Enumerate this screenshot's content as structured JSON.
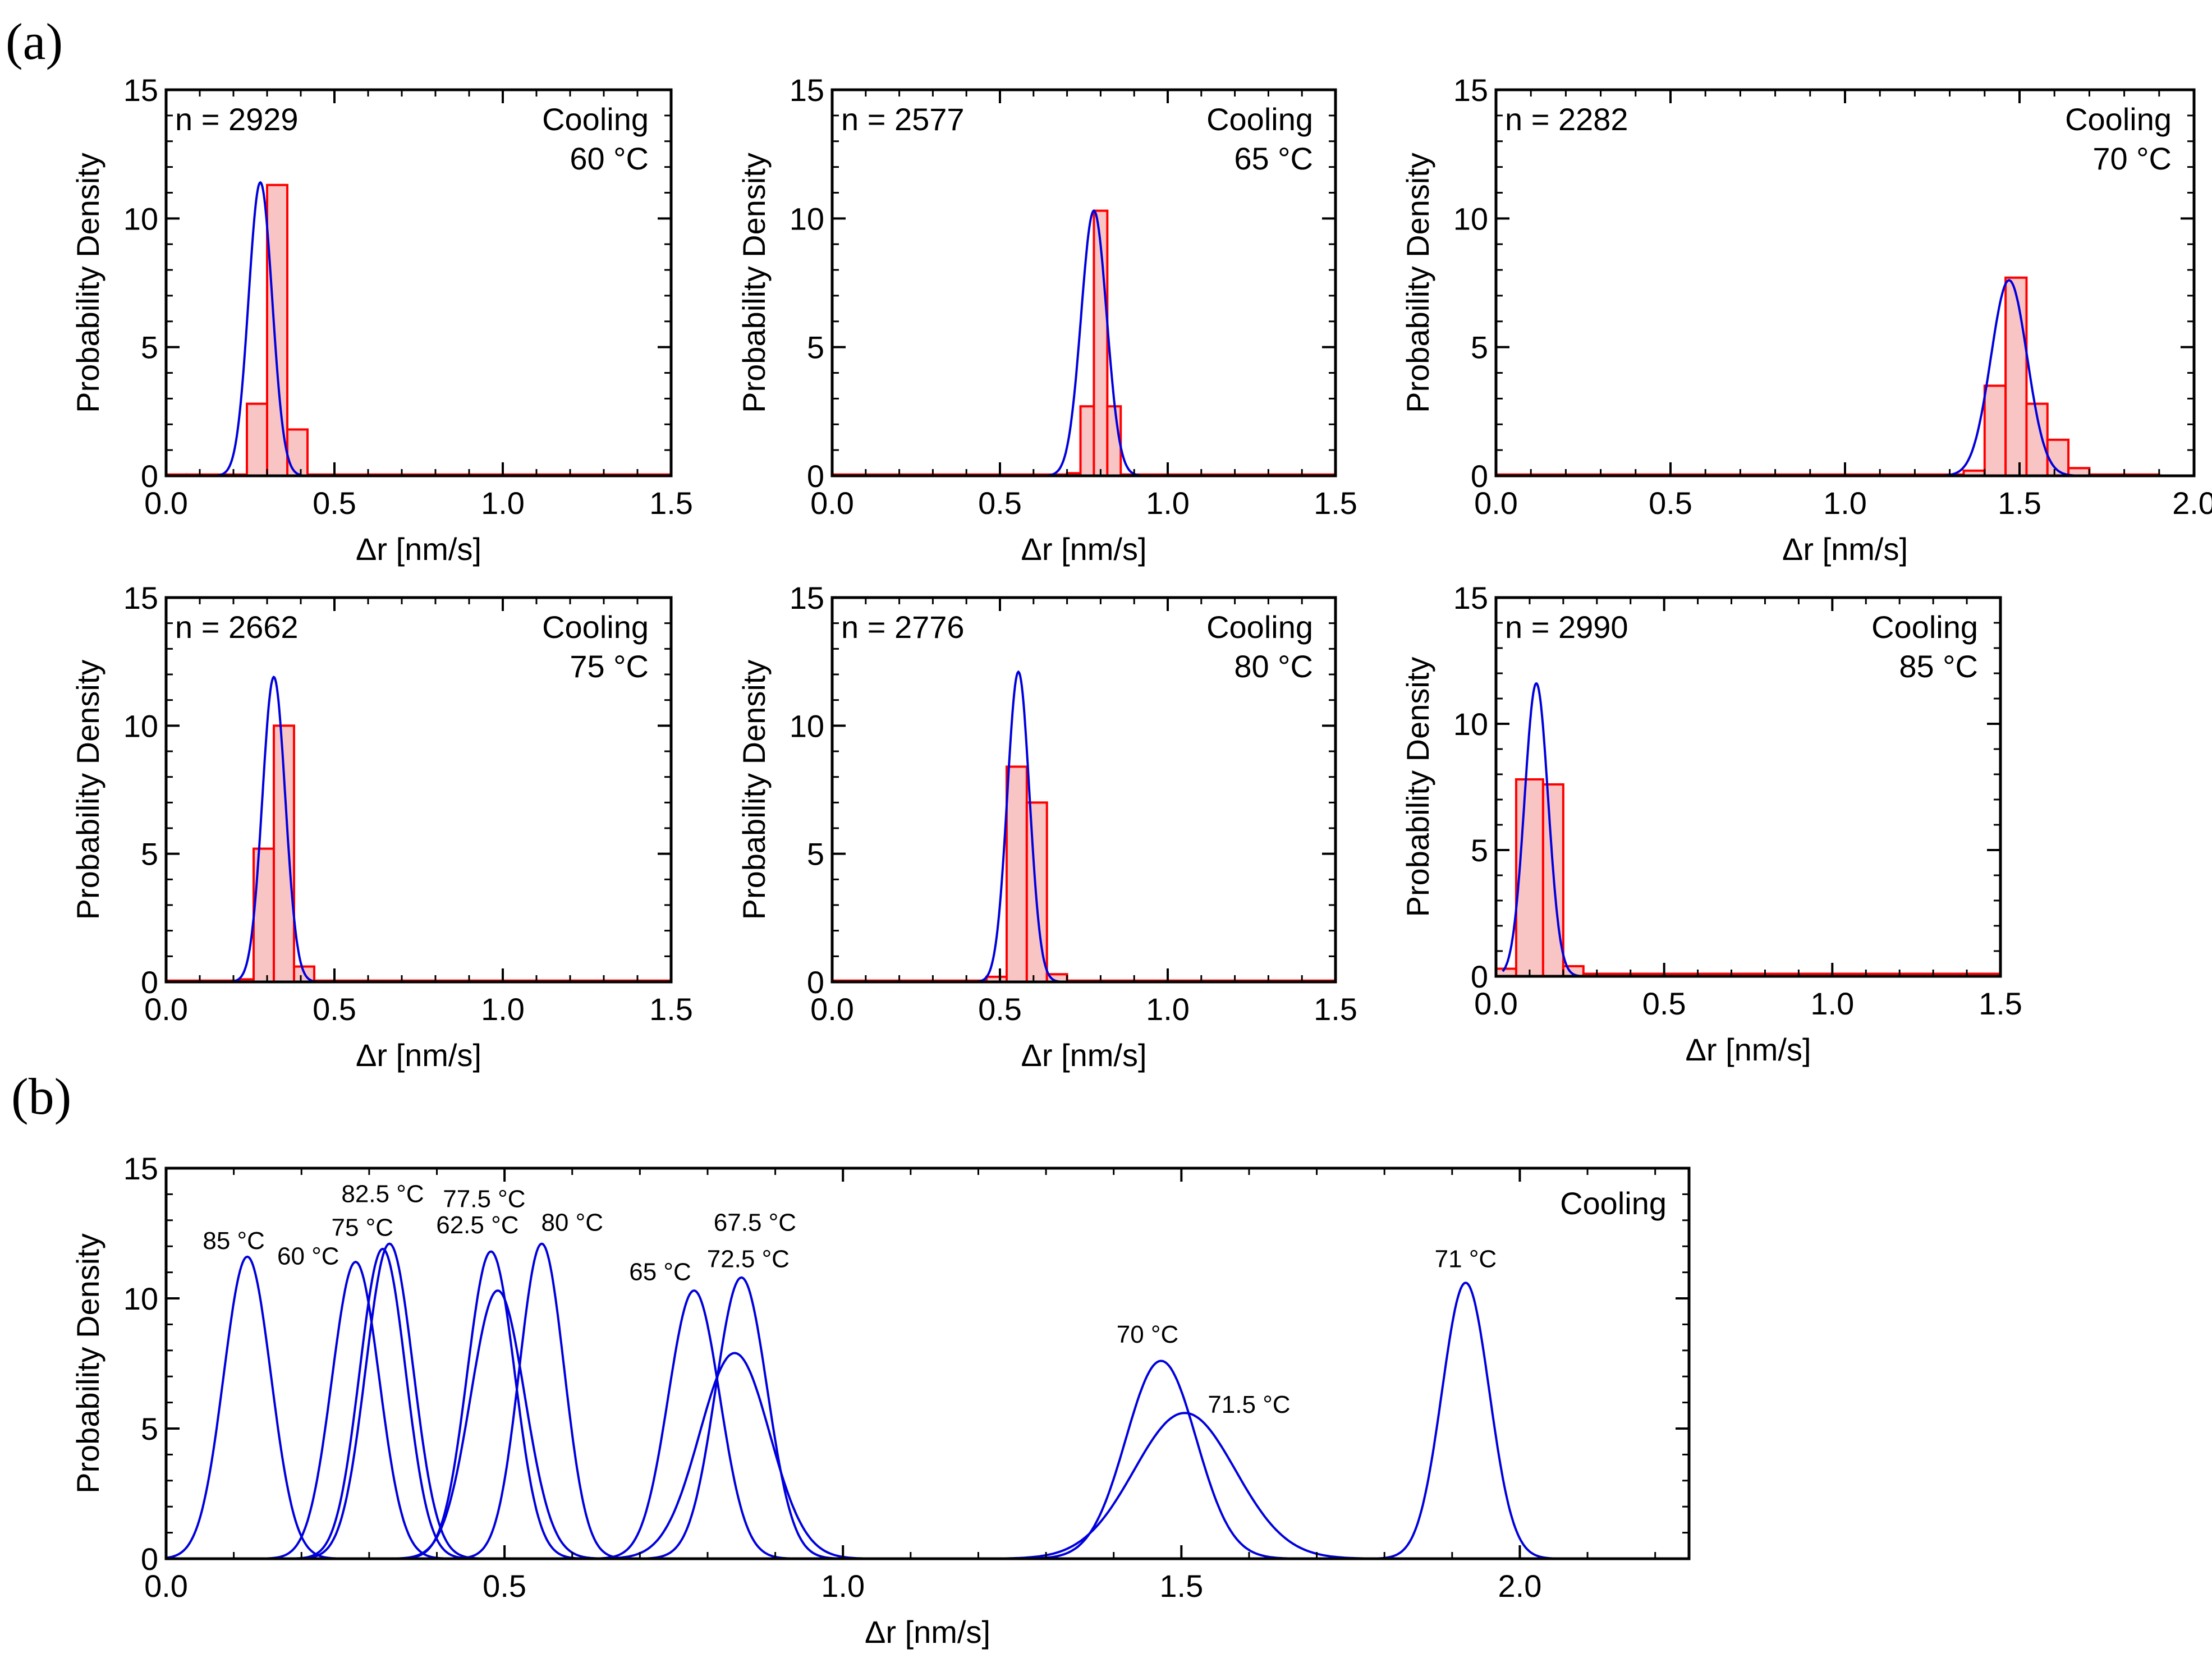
{
  "figure": {
    "panel_a_label": "(a)",
    "panel_b_label": "(b)"
  },
  "colors": {
    "hist_edge": "#ff0000",
    "hist_fill": "#f9c4c4",
    "fit": "#0000dd",
    "axis": "#000000"
  },
  "chart_data": [
    {
      "type": "bar",
      "id": "a-60",
      "n_label": "n = 2929",
      "annotation": [
        "Cooling",
        "60 °C"
      ],
      "xlabel": "Δr [nm/s]",
      "ylabel": "Probability Density",
      "xlim": [
        0,
        1.5
      ],
      "ylim": [
        0,
        15
      ],
      "xticks": [
        0.0,
        0.5,
        1.0,
        1.5
      ],
      "yticks": [
        0,
        5,
        10,
        15
      ],
      "bins": [
        [
          0.0,
          0.06,
          0.05
        ],
        [
          0.06,
          0.18,
          0.05
        ],
        [
          0.18,
          0.24,
          0.05
        ],
        [
          0.24,
          0.3,
          2.8
        ],
        [
          0.3,
          0.36,
          11.3
        ],
        [
          0.36,
          0.42,
          1.8
        ],
        [
          0.42,
          1.5,
          0.05
        ]
      ],
      "fit": {
        "mean": 0.28,
        "sigma": 0.035,
        "peak": 11.4,
        "xmin": 0.08,
        "xmax": 0.4
      }
    },
    {
      "type": "bar",
      "id": "a-65",
      "n_label": "n = 2577",
      "annotation": [
        "Cooling",
        "65 °C"
      ],
      "xlabel": "Δr [nm/s]",
      "ylabel": "Probability Density",
      "xlim": [
        0,
        1.5
      ],
      "ylim": [
        0,
        15
      ],
      "xticks": [
        0.0,
        0.5,
        1.0,
        1.5
      ],
      "yticks": [
        0,
        5,
        10,
        15
      ],
      "bins": [
        [
          0.0,
          0.7,
          0.05
        ],
        [
          0.7,
          0.74,
          0.1
        ],
        [
          0.74,
          0.78,
          2.7
        ],
        [
          0.78,
          0.82,
          10.3
        ],
        [
          0.82,
          0.86,
          2.7
        ],
        [
          0.86,
          1.5,
          0.05
        ]
      ],
      "fit": {
        "mean": 0.78,
        "sigma": 0.038,
        "peak": 10.3,
        "xmin": 0.55,
        "xmax": 1.0
      }
    },
    {
      "type": "bar",
      "id": "a-70",
      "n_label": "n = 2282",
      "annotation": [
        "Cooling",
        "70 °C"
      ],
      "xlabel": "Δr [nm/s]",
      "ylabel": "Probability Density",
      "xlim": [
        0,
        2.0
      ],
      "ylim": [
        0,
        15
      ],
      "xticks": [
        0.0,
        0.5,
        1.0,
        1.5,
        2.0
      ],
      "yticks": [
        0,
        5,
        10,
        15
      ],
      "bins": [
        [
          0.0,
          1.34,
          0.05
        ],
        [
          1.34,
          1.4,
          0.2
        ],
        [
          1.4,
          1.46,
          3.5
        ],
        [
          1.46,
          1.52,
          7.7
        ],
        [
          1.52,
          1.58,
          2.8
        ],
        [
          1.58,
          1.64,
          1.4
        ],
        [
          1.64,
          1.7,
          0.3
        ],
        [
          1.7,
          1.9,
          0.05
        ]
      ],
      "fit": {
        "mean": 1.47,
        "sigma": 0.052,
        "peak": 7.6,
        "xmin": 1.2,
        "xmax": 1.72
      }
    },
    {
      "type": "bar",
      "id": "a-75",
      "n_label": "n = 2662",
      "annotation": [
        "Cooling",
        "75 °C"
      ],
      "xlabel": "Δr [nm/s]",
      "ylabel": "Probability Density",
      "xlim": [
        0,
        1.5
      ],
      "ylim": [
        0,
        15
      ],
      "xticks": [
        0.0,
        0.5,
        1.0,
        1.5
      ],
      "yticks": [
        0,
        5,
        10,
        15
      ],
      "bins": [
        [
          0.0,
          0.22,
          0.05
        ],
        [
          0.22,
          0.26,
          0.1
        ],
        [
          0.26,
          0.32,
          5.2
        ],
        [
          0.32,
          0.38,
          10.0
        ],
        [
          0.38,
          0.44,
          0.6
        ],
        [
          0.44,
          1.5,
          0.05
        ]
      ],
      "fit": {
        "mean": 0.32,
        "sigma": 0.034,
        "peak": 11.9,
        "xmin": 0.12,
        "xmax": 0.5
      }
    },
    {
      "type": "bar",
      "id": "a-80",
      "n_label": "n = 2776",
      "annotation": [
        "Cooling",
        "80 °C"
      ],
      "xlabel": "Δr [nm/s]",
      "ylabel": "Probability Density",
      "xlim": [
        0,
        1.5
      ],
      "ylim": [
        0,
        15
      ],
      "xticks": [
        0.0,
        0.5,
        1.0,
        1.5
      ],
      "yticks": [
        0,
        5,
        10,
        15
      ],
      "bins": [
        [
          0.0,
          0.46,
          0.05
        ],
        [
          0.46,
          0.52,
          0.2
        ],
        [
          0.52,
          0.58,
          8.4
        ],
        [
          0.58,
          0.64,
          7.0
        ],
        [
          0.64,
          0.7,
          0.3
        ],
        [
          0.7,
          1.5,
          0.05
        ]
      ],
      "fit": {
        "mean": 0.555,
        "sigma": 0.033,
        "peak": 12.1,
        "xmin": 0.35,
        "xmax": 0.75
      }
    },
    {
      "type": "bar",
      "id": "a-85",
      "n_label": "n = 2990",
      "annotation": [
        "Cooling",
        "85 °C"
      ],
      "xlabel": "Δr [nm/s]",
      "ylabel": "Probability Density",
      "xlim": [
        0,
        1.5
      ],
      "ylim": [
        0,
        15
      ],
      "xticks": [
        0.0,
        0.5,
        1.0,
        1.5
      ],
      "yticks": [
        0,
        5,
        10,
        15
      ],
      "bins": [
        [
          0.0,
          0.06,
          0.3
        ],
        [
          0.06,
          0.14,
          7.8
        ],
        [
          0.14,
          0.2,
          7.6
        ],
        [
          0.2,
          0.26,
          0.4
        ],
        [
          0.26,
          1.5,
          0.1
        ]
      ],
      "fit": {
        "mean": 0.12,
        "sigma": 0.035,
        "peak": 11.6,
        "xmin": 0.02,
        "xmax": 0.28
      }
    },
    {
      "type": "line",
      "id": "b-overlay",
      "annotation": "Cooling",
      "xlabel": "Δr [nm/s]",
      "ylabel": "Probability Density",
      "xlim": [
        0,
        2.25
      ],
      "ylim": [
        0,
        15
      ],
      "xticks": [
        0.0,
        0.5,
        1.0,
        1.5,
        2.0
      ],
      "yticks": [
        0,
        5,
        10,
        15
      ],
      "series": [
        {
          "name": "85 °C",
          "mean": 0.12,
          "sigma": 0.035,
          "peak": 11.6,
          "label_at": [
            0.1,
            11.9
          ]
        },
        {
          "name": "60 °C",
          "mean": 0.28,
          "sigma": 0.035,
          "peak": 11.4,
          "label_at": [
            0.21,
            11.3
          ]
        },
        {
          "name": "75 °C",
          "mean": 0.32,
          "sigma": 0.034,
          "peak": 11.9,
          "label_at": [
            0.29,
            12.4
          ]
        },
        {
          "name": "82.5 °C",
          "mean": 0.33,
          "sigma": 0.035,
          "peak": 12.1,
          "label_at": [
            0.32,
            13.7
          ]
        },
        {
          "name": "77.5 °C",
          "mean": 0.48,
          "sigma": 0.035,
          "peak": 11.8,
          "label_at": [
            0.47,
            13.5
          ]
        },
        {
          "name": "62.5 °C",
          "mean": 0.49,
          "sigma": 0.04,
          "peak": 10.3,
          "label_at": [
            0.46,
            12.5
          ]
        },
        {
          "name": "80 °C",
          "mean": 0.555,
          "sigma": 0.033,
          "peak": 12.1,
          "label_at": [
            0.6,
            12.6
          ]
        },
        {
          "name": "65 °C",
          "mean": 0.78,
          "sigma": 0.038,
          "peak": 10.3,
          "label_at": [
            0.73,
            10.7
          ]
        },
        {
          "name": "67.5 °C",
          "mean": 0.85,
          "sigma": 0.038,
          "peak": 10.8,
          "label_at": [
            0.87,
            12.6
          ]
        },
        {
          "name": "72.5 °C",
          "mean": 0.84,
          "sigma": 0.052,
          "peak": 7.9,
          "label_at": [
            0.86,
            11.2
          ]
        },
        {
          "name": "70 °C",
          "mean": 1.47,
          "sigma": 0.052,
          "peak": 7.6,
          "label_at": [
            1.45,
            8.3
          ]
        },
        {
          "name": "71.5 °C",
          "mean": 1.505,
          "sigma": 0.075,
          "peak": 5.6,
          "label_at": [
            1.6,
            5.6
          ]
        },
        {
          "name": "71 °C",
          "mean": 1.92,
          "sigma": 0.035,
          "peak": 10.6,
          "label_at": [
            1.92,
            11.2
          ]
        }
      ]
    }
  ]
}
